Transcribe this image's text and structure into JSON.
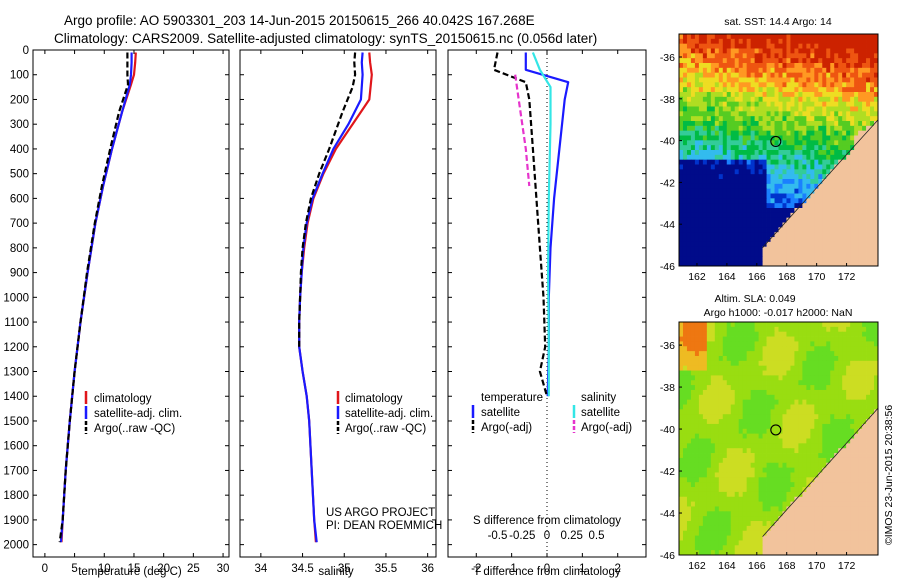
{
  "header": {
    "line1": "Argo profile: AO 5903301_203 14-Jun-2015 20150615_266 40.042S 167.268E",
    "line2": "Climatology: CARS2009. Satellite-adjusted climatology: synTS_20150615.nc (0.056d later)"
  },
  "panels": {
    "depth_ticks": [
      "0",
      "100",
      "200",
      "300",
      "400",
      "500",
      "600",
      "700",
      "800",
      "900",
      "1000",
      "1100",
      "1200",
      "1300",
      "1400",
      "1500",
      "1600",
      "1700",
      "1800",
      "1900",
      "2000"
    ],
    "temperature": {
      "xlabel": "temperature (deg C)",
      "xticks": [
        "0",
        "5",
        "10",
        "15",
        "20",
        "25",
        "30"
      ],
      "legend": [
        "climatology",
        "satellite-adj. clim.",
        "Argo(..raw -QC)"
      ]
    },
    "salinity": {
      "xlabel": "salinity",
      "xticks": [
        "34",
        "34.5",
        "35",
        "35.5",
        "36"
      ],
      "legend": [
        "climatology",
        "satellite-adj. clim.",
        "Argo(..raw -QC)"
      ],
      "credit1": "US ARGO PROJECT",
      "credit2": "PI: DEAN ROEMMICH"
    },
    "difference": {
      "top_label": "S difference from climatology",
      "top_ticks": [
        "-0.5",
        "-0.25",
        "0",
        "0.25",
        "0.5"
      ],
      "xlabel": "T difference from climatology",
      "xticks": [
        "-2",
        "-1",
        "0",
        "1",
        "2"
      ],
      "legend_temp_title": "temperature",
      "legend_sal_title": "salinity",
      "legend_temp": [
        "satellite",
        "Argo(-adj)"
      ],
      "legend_sal": [
        "satellite",
        "Argo(-adj)"
      ]
    }
  },
  "maps": {
    "sst_title": "sat. SST: 14.4  Argo: 14",
    "sla_title1": "Altim. SLA: 0.049",
    "sla_title2": "Argo h1000: -0.017 h2000: NaN",
    "lat_ticks_sst": [
      "-36",
      "-38",
      "-40",
      "-42",
      "-44",
      "-46"
    ],
    "lat_ticks_sla": [
      "-36",
      "-38",
      "-40",
      "-42",
      "-44",
      "-46"
    ],
    "lon_ticks": [
      "162",
      "164",
      "166",
      "168",
      "170",
      "172"
    ],
    "stamp": "©IMOS 23-Jun-2015 20:38:56"
  },
  "colors": {
    "climatology": "#e0161b",
    "satellite": "#1a1aff",
    "argo": "#000000",
    "sal_satellite": "#33e6e6",
    "sal_argo": "#e633cc",
    "land": "#f2c39c"
  },
  "chart_data": [
    {
      "type": "line",
      "title": "",
      "xlabel": "temperature (deg C)",
      "ylabel": "",
      "xlim": [
        -2,
        31
      ],
      "ylim": [
        2050,
        0
      ],
      "series": [
        {
          "name": "climatology",
          "points": [
            [
              15.3,
              10
            ],
            [
              15.2,
              50
            ],
            [
              15.0,
              100
            ],
            [
              14.5,
              140
            ],
            [
              13.0,
              250
            ],
            [
              11.3,
              400
            ],
            [
              9.8,
              550
            ],
            [
              8.5,
              700
            ],
            [
              7.2,
              900
            ],
            [
              6.0,
              1100
            ],
            [
              5.0,
              1300
            ],
            [
              4.2,
              1500
            ],
            [
              3.5,
              1700
            ],
            [
              3.0,
              1900
            ],
            [
              2.8,
              1990
            ]
          ]
        },
        {
          "name": "satellite-adj. clim.",
          "points": [
            [
              14.6,
              10
            ],
            [
              14.6,
              50
            ],
            [
              14.5,
              100
            ],
            [
              14.3,
              140
            ],
            [
              13.0,
              250
            ],
            [
              11.3,
              400
            ],
            [
              9.8,
              550
            ],
            [
              8.5,
              700
            ],
            [
              7.2,
              900
            ],
            [
              6.0,
              1100
            ],
            [
              5.0,
              1300
            ],
            [
              4.2,
              1500
            ],
            [
              3.5,
              1700
            ],
            [
              3.0,
              1900
            ],
            [
              2.7,
              1990
            ]
          ]
        },
        {
          "name": "Argo(..raw -QC)",
          "points": [
            [
              13.9,
              10
            ],
            [
              13.9,
              50
            ],
            [
              13.9,
              100
            ],
            [
              14.0,
              140
            ],
            [
              12.5,
              250
            ],
            [
              11.0,
              400
            ],
            [
              9.6,
              550
            ],
            [
              8.4,
              700
            ],
            [
              7.1,
              900
            ],
            [
              6.0,
              1100
            ],
            [
              5.0,
              1300
            ],
            [
              4.2,
              1500
            ],
            [
              3.5,
              1700
            ],
            [
              3.0,
              1900
            ],
            [
              2.5,
              1990
            ]
          ]
        }
      ]
    },
    {
      "type": "line",
      "title": "",
      "xlabel": "salinity",
      "ylabel": "",
      "xlim": [
        33.75,
        36.1
      ],
      "ylim": [
        2050,
        0
      ],
      "series": [
        {
          "name": "climatology",
          "points": [
            [
              35.3,
              10
            ],
            [
              35.31,
              50
            ],
            [
              35.33,
              100
            ],
            [
              35.3,
              200
            ],
            [
              35.1,
              300
            ],
            [
              34.9,
              400
            ],
            [
              34.75,
              500
            ],
            [
              34.63,
              600
            ],
            [
              34.56,
              700
            ],
            [
              34.52,
              800
            ],
            [
              34.49,
              900
            ],
            [
              34.47,
              1000
            ],
            [
              34.46,
              1100
            ],
            [
              34.46,
              1200
            ],
            [
              34.5,
              1300
            ],
            [
              34.55,
              1400
            ],
            [
              34.58,
              1500
            ],
            [
              34.61,
              1700
            ],
            [
              34.64,
              1900
            ],
            [
              34.66,
              1990
            ]
          ]
        },
        {
          "name": "satellite-adj. clim.",
          "points": [
            [
              35.22,
              10
            ],
            [
              35.21,
              50
            ],
            [
              35.22,
              100
            ],
            [
              35.2,
              200
            ],
            [
              35.05,
              300
            ],
            [
              34.87,
              400
            ],
            [
              34.74,
              500
            ],
            [
              34.62,
              600
            ],
            [
              34.55,
              700
            ],
            [
              34.51,
              800
            ],
            [
              34.49,
              900
            ],
            [
              34.47,
              1000
            ],
            [
              34.46,
              1100
            ],
            [
              34.46,
              1200
            ],
            [
              34.5,
              1300
            ],
            [
              34.55,
              1400
            ],
            [
              34.58,
              1500
            ],
            [
              34.61,
              1700
            ],
            [
              34.64,
              1900
            ],
            [
              34.67,
              1990
            ]
          ]
        },
        {
          "name": "Argo(..raw -QC)",
          "points": [
            [
              35.13,
              10
            ],
            [
              35.12,
              50
            ],
            [
              35.13,
              100
            ],
            [
              35.1,
              150
            ],
            [
              34.98,
              250
            ],
            [
              34.82,
              400
            ],
            [
              34.7,
              500
            ],
            [
              34.6,
              600
            ],
            [
              34.54,
              700
            ],
            [
              34.5,
              800
            ],
            [
              34.48,
              900
            ],
            [
              34.47,
              1000
            ],
            [
              34.46,
              1100
            ],
            [
              34.46,
              1200
            ]
          ]
        }
      ]
    },
    {
      "type": "line",
      "title": "",
      "xlabel": "T difference from climatology",
      "ylabel": "",
      "xlim": [
        -2.8,
        2.8
      ],
      "ylim": [
        2050,
        0
      ],
      "series": [
        {
          "name": "temperature satellite",
          "points": [
            [
              -0.6,
              10
            ],
            [
              -0.6,
              80
            ],
            [
              0.6,
              130
            ],
            [
              0.5,
              200
            ],
            [
              0.35,
              400
            ],
            [
              0.2,
              600
            ],
            [
              0.1,
              800
            ],
            [
              0.05,
              1000
            ],
            [
              0.05,
              1200
            ],
            [
              0.02,
              1400
            ]
          ]
        },
        {
          "name": "temperature Argo(-adj)",
          "points": [
            [
              -1.4,
              10
            ],
            [
              -1.5,
              80
            ],
            [
              -0.6,
              130
            ],
            [
              -0.5,
              200
            ],
            [
              -0.4,
              400
            ],
            [
              -0.3,
              600
            ],
            [
              -0.2,
              800
            ],
            [
              -0.1,
              1000
            ],
            [
              -0.05,
              1200
            ],
            [
              -0.2,
              1300
            ],
            [
              0.0,
              1400
            ]
          ]
        },
        {
          "name": "salinity satellite",
          "points": [
            [
              -0.4,
              10
            ],
            [
              -0.2,
              80
            ],
            [
              0.1,
              150
            ],
            [
              0.1,
              300
            ],
            [
              0.05,
              600
            ],
            [
              0.03,
              900
            ],
            [
              0.05,
              1200
            ],
            [
              0.05,
              1400
            ]
          ]
        },
        {
          "name": "salinity Argo(-adj)",
          "points": [
            [
              -0.9,
              100
            ],
            [
              -0.8,
              200
            ],
            [
              -0.6,
              400
            ],
            [
              -0.5,
              550
            ]
          ]
        }
      ]
    }
  ]
}
